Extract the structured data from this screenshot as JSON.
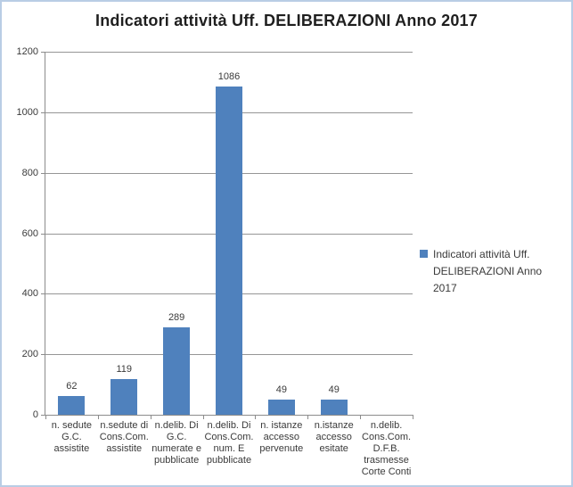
{
  "chart_data": {
    "type": "bar",
    "title": "Indicatori attività Uff. DELIBERAZIONI Anno 2017",
    "categories": [
      "n. sedute\nG.C.\nassistite",
      "n.sedute di\nCons.Com.\nassistite",
      "n.delib. Di\nG.C.\nnumerate e\npubblicate",
      "n.delib. Di\nCons.Com.\nnum. E\npubblicate",
      "n. istanze\naccesso\npervenute",
      "n.istanze\naccesso\nesitate",
      "n.delib.\nCons.Com.\nD.F.B.\ntrasmesse\nCorte Conti"
    ],
    "values": [
      62,
      119,
      289,
      1086,
      49,
      49,
      0
    ],
    "data_labels": [
      "62",
      "119",
      "289",
      "1086",
      "49",
      "49",
      ""
    ],
    "xlabel": "",
    "ylabel": "",
    "ylim": [
      0,
      1200
    ],
    "yticks": [
      0,
      200,
      400,
      600,
      800,
      1000,
      1200
    ],
    "grid": true,
    "legend": {
      "position": "right",
      "lines": "Indicatori attività Uff.\nDELIBERAZIONI Anno 2017"
    },
    "colors": {
      "bar": "#4F81BD",
      "gridline": "#969696",
      "axis": "#8C8C8C",
      "frame_border": "#B9CDE5",
      "title_text": "#1F1F1F",
      "label_text": "#3A3A3A"
    }
  }
}
